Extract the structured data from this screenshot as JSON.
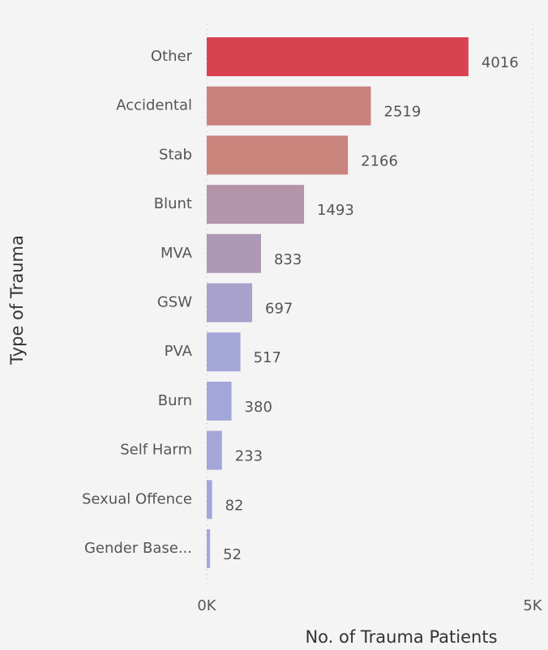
{
  "chart_data": {
    "type": "bar",
    "orientation": "horizontal",
    "x_label": "No. of Trauma Patients",
    "y_label": "Type of Trauma",
    "categories": [
      "Other",
      "Accidental",
      "Stab",
      "Blunt",
      "MVA",
      "GSW",
      "PVA",
      "Burn",
      "Self Harm",
      "Sexual Offence",
      "Gender Base..."
    ],
    "values": [
      4016,
      2519,
      2166,
      1493,
      833,
      697,
      517,
      380,
      233,
      82,
      52
    ],
    "colors": [
      "#d9434f",
      "#c9827c",
      "#c9847b",
      "#b394a8",
      "#ad98b5",
      "#a8a1cc",
      "#a4a6d8",
      "#a3a6d8",
      "#a4a5d9",
      "#a4a6db",
      "#a6a7dc"
    ],
    "xlim": [
      0,
      5000
    ],
    "xticks": [
      {
        "value": 0,
        "label": "0K"
      },
      {
        "value": 5000,
        "label": "5K"
      }
    ],
    "grid": true
  }
}
